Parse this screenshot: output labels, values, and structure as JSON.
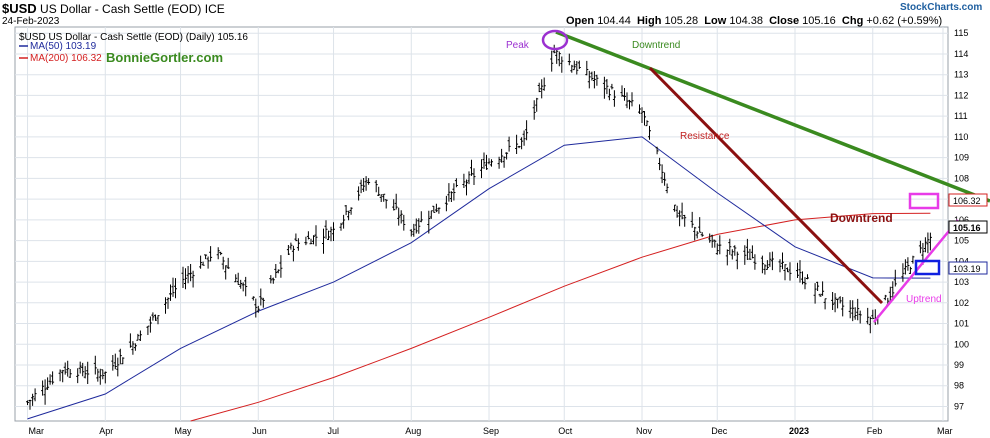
{
  "header": {
    "symbol": "$USD",
    "name": "US Dollar - Cash Settle (EOD)",
    "exchange": "ICE",
    "date": "24-Feb-2023",
    "open_label": "Open",
    "open": "104.44",
    "high_label": "High",
    "high": "105.28",
    "low_label": "Low",
    "low": "104.38",
    "close_label": "Close",
    "close": "105.16",
    "chg_label": "Chg",
    "chg": "+0.62 (+0.59%)",
    "logo": "StockCharts.com"
  },
  "legend": {
    "price": "$USD US Dollar - Cash Settle (EOD) (Daily) 105.16",
    "ma50": "MA(50) 103.19",
    "ma200": "MA(200) 106.32",
    "watermark": "BonnieGortler.com"
  },
  "annotations": {
    "peak": "Peak",
    "downtrend_top": "Downtrend",
    "resistance": "Resistance",
    "downtrend_right": "Downtrend",
    "uptrend": "Uptrend"
  },
  "colors": {
    "price": "#000000",
    "ma50": "#1f2a9c",
    "ma200": "#d42020",
    "green_trend": "#3a8a1f",
    "resistance": "#8b1010",
    "uptrend": "#e83be8",
    "peak_circle": "#9b30d0",
    "blue_box": "#1020e0",
    "grid": "#dde3ea"
  },
  "chart_data": {
    "type": "bar",
    "subtype": "ohlc",
    "y_ticks": [
      97,
      98,
      99,
      100,
      101,
      102,
      103,
      104,
      105,
      106,
      107,
      108,
      109,
      110,
      111,
      112,
      113,
      114,
      115
    ],
    "ylim": [
      96.3,
      115.3
    ],
    "x_labels": [
      "Mar",
      "Apr",
      "May",
      "Jun",
      "Jul",
      "Aug",
      "Sep",
      "Oct",
      "Nov",
      "Dec",
      "2023",
      "Feb",
      "Mar"
    ],
    "price_labels": {
      "ma200": "106.32",
      "close": "105.16",
      "ma50": "103.19"
    },
    "close_series": {
      "x": [
        "2022-03-01",
        "2022-03-15",
        "2022-04-01",
        "2022-04-15",
        "2022-05-01",
        "2022-05-15",
        "2022-06-01",
        "2022-06-15",
        "2022-07-01",
        "2022-07-15",
        "2022-08-01",
        "2022-08-15",
        "2022-09-01",
        "2022-09-15",
        "2022-09-27",
        "2022-10-15",
        "2022-11-01",
        "2022-11-15",
        "2022-12-01",
        "2022-12-15",
        "2023-01-01",
        "2023-01-15",
        "2023-02-01",
        "2023-02-15",
        "2023-02-24"
      ],
      "values": [
        97.2,
        98.8,
        98.6,
        100.4,
        103.0,
        104.5,
        101.8,
        104.8,
        105.5,
        108.0,
        105.5,
        107.0,
        108.8,
        109.8,
        114.1,
        112.6,
        111.2,
        106.3,
        104.7,
        104.2,
        103.5,
        102.1,
        101.2,
        103.7,
        105.16
      ]
    },
    "ma50_series": {
      "x": [
        "2022-03-01",
        "2022-04-01",
        "2022-05-01",
        "2022-06-01",
        "2022-07-01",
        "2022-08-01",
        "2022-09-01",
        "2022-10-01",
        "2022-11-01",
        "2022-12-01",
        "2023-01-01",
        "2023-02-01",
        "2023-02-24"
      ],
      "values": [
        96.4,
        97.6,
        99.8,
        101.6,
        103.0,
        104.9,
        107.5,
        109.6,
        110.0,
        107.3,
        104.7,
        103.2,
        103.19
      ]
    },
    "ma200_series": {
      "x": [
        "2022-05-05",
        "2022-06-01",
        "2022-07-01",
        "2022-08-01",
        "2022-09-01",
        "2022-10-01",
        "2022-11-01",
        "2022-12-01",
        "2023-01-01",
        "2023-02-01",
        "2023-02-24"
      ],
      "values": [
        96.3,
        97.2,
        98.4,
        99.8,
        101.3,
        102.8,
        104.2,
        105.3,
        106.0,
        106.3,
        106.32
      ]
    }
  }
}
